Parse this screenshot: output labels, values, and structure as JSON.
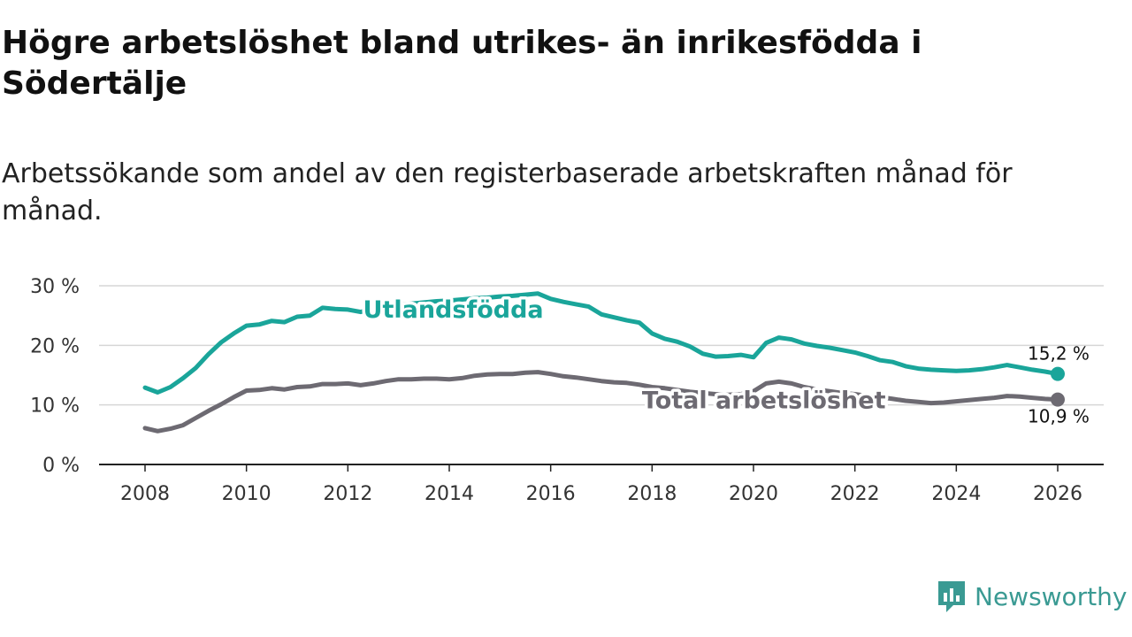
{
  "title": "Högre arbetslöshet bland utrikes- än inrikesfödda i Södertälje",
  "subtitle": "Arbetssökande som andel av den registerbaserade arbetskraften månad för månad.",
  "brand": {
    "name": "Newsworthy",
    "color": "#3a9a93"
  },
  "chart_data": {
    "type": "line",
    "title": "Högre arbetslöshet bland utrikes- än inrikesfödda i Södertälje",
    "subtitle": "Arbetssökande som andel av den registerbaserade arbetskraften månad för månad.",
    "ylim": [
      0,
      30
    ],
    "xlim": [
      2008,
      2026
    ],
    "y_ticks": [
      0,
      10,
      20,
      30
    ],
    "y_tick_labels": [
      "0 %",
      "10 %",
      "20 %",
      "30 %"
    ],
    "x_ticks": [
      2008,
      2010,
      2012,
      2014,
      2016,
      2018,
      2020,
      2022,
      2024,
      2026
    ],
    "x_tick_labels": [
      "2008",
      "2010",
      "2012",
      "2014",
      "2016",
      "2018",
      "2020",
      "2022",
      "2024",
      "2026"
    ],
    "grid": true,
    "series": [
      {
        "name": "Utlandsfödda",
        "color": "#1aa59a",
        "end_label": "15,2 %",
        "points": [
          [
            2008.0,
            12.9
          ],
          [
            2008.25,
            12.1
          ],
          [
            2008.5,
            13.0
          ],
          [
            2008.75,
            14.5
          ],
          [
            2009.0,
            16.2
          ],
          [
            2009.25,
            18.5
          ],
          [
            2009.5,
            20.5
          ],
          [
            2009.75,
            22.0
          ],
          [
            2010.0,
            23.3
          ],
          [
            2010.25,
            23.5
          ],
          [
            2010.5,
            24.1
          ],
          [
            2010.75,
            23.9
          ],
          [
            2011.0,
            24.8
          ],
          [
            2011.25,
            25.0
          ],
          [
            2011.5,
            26.3
          ],
          [
            2011.75,
            26.1
          ],
          [
            2012.0,
            26.0
          ],
          [
            2012.25,
            25.6
          ],
          [
            2012.5,
            26.2
          ],
          [
            2012.75,
            26.5
          ],
          [
            2013.0,
            26.8
          ],
          [
            2013.25,
            27.0
          ],
          [
            2013.5,
            27.2
          ],
          [
            2013.75,
            27.4
          ],
          [
            2014.0,
            27.5
          ],
          [
            2014.25,
            27.7
          ],
          [
            2014.5,
            27.9
          ],
          [
            2014.75,
            28.0
          ],
          [
            2015.0,
            28.2
          ],
          [
            2015.25,
            28.3
          ],
          [
            2015.5,
            28.5
          ],
          [
            2015.75,
            28.7
          ],
          [
            2016.0,
            27.8
          ],
          [
            2016.25,
            27.3
          ],
          [
            2016.5,
            26.9
          ],
          [
            2016.75,
            26.5
          ],
          [
            2017.0,
            25.2
          ],
          [
            2017.25,
            24.7
          ],
          [
            2017.5,
            24.2
          ],
          [
            2017.75,
            23.8
          ],
          [
            2018.0,
            22.0
          ],
          [
            2018.25,
            21.1
          ],
          [
            2018.5,
            20.6
          ],
          [
            2018.75,
            19.8
          ],
          [
            2019.0,
            18.6
          ],
          [
            2019.25,
            18.1
          ],
          [
            2019.5,
            18.2
          ],
          [
            2019.75,
            18.4
          ],
          [
            2020.0,
            18.0
          ],
          [
            2020.25,
            20.4
          ],
          [
            2020.5,
            21.3
          ],
          [
            2020.75,
            21.0
          ],
          [
            2021.0,
            20.3
          ],
          [
            2021.25,
            19.9
          ],
          [
            2021.5,
            19.6
          ],
          [
            2021.75,
            19.2
          ],
          [
            2022.0,
            18.8
          ],
          [
            2022.25,
            18.2
          ],
          [
            2022.5,
            17.5
          ],
          [
            2022.75,
            17.2
          ],
          [
            2023.0,
            16.5
          ],
          [
            2023.25,
            16.1
          ],
          [
            2023.5,
            15.9
          ],
          [
            2023.75,
            15.8
          ],
          [
            2024.0,
            15.7
          ],
          [
            2024.25,
            15.8
          ],
          [
            2024.5,
            16.0
          ],
          [
            2024.75,
            16.3
          ],
          [
            2025.0,
            16.7
          ],
          [
            2025.25,
            16.3
          ],
          [
            2025.5,
            15.9
          ],
          [
            2025.75,
            15.6
          ],
          [
            2026.0,
            15.2
          ]
        ]
      },
      {
        "name": "Total arbetslöshet",
        "color": "#6d6a72",
        "end_label": "10,9 %",
        "points": [
          [
            2008.0,
            6.1
          ],
          [
            2008.25,
            5.6
          ],
          [
            2008.5,
            6.0
          ],
          [
            2008.75,
            6.6
          ],
          [
            2009.0,
            7.8
          ],
          [
            2009.25,
            9.0
          ],
          [
            2009.5,
            10.1
          ],
          [
            2009.75,
            11.3
          ],
          [
            2010.0,
            12.4
          ],
          [
            2010.25,
            12.5
          ],
          [
            2010.5,
            12.8
          ],
          [
            2010.75,
            12.6
          ],
          [
            2011.0,
            13.0
          ],
          [
            2011.25,
            13.1
          ],
          [
            2011.5,
            13.5
          ],
          [
            2011.75,
            13.5
          ],
          [
            2012.0,
            13.6
          ],
          [
            2012.25,
            13.3
          ],
          [
            2012.5,
            13.6
          ],
          [
            2012.75,
            14.0
          ],
          [
            2013.0,
            14.3
          ],
          [
            2013.25,
            14.3
          ],
          [
            2013.5,
            14.4
          ],
          [
            2013.75,
            14.4
          ],
          [
            2014.0,
            14.3
          ],
          [
            2014.25,
            14.5
          ],
          [
            2014.5,
            14.9
          ],
          [
            2014.75,
            15.1
          ],
          [
            2015.0,
            15.2
          ],
          [
            2015.25,
            15.2
          ],
          [
            2015.5,
            15.4
          ],
          [
            2015.75,
            15.5
          ],
          [
            2016.0,
            15.2
          ],
          [
            2016.25,
            14.8
          ],
          [
            2016.5,
            14.6
          ],
          [
            2016.75,
            14.3
          ],
          [
            2017.0,
            14.0
          ],
          [
            2017.25,
            13.8
          ],
          [
            2017.5,
            13.7
          ],
          [
            2017.75,
            13.4
          ],
          [
            2018.0,
            13.0
          ],
          [
            2018.25,
            12.8
          ],
          [
            2018.5,
            12.5
          ],
          [
            2018.75,
            12.2
          ],
          [
            2019.0,
            12.0
          ],
          [
            2019.25,
            11.8
          ],
          [
            2019.5,
            11.7
          ],
          [
            2019.75,
            11.8
          ],
          [
            2020.0,
            12.3
          ],
          [
            2020.25,
            13.6
          ],
          [
            2020.5,
            13.9
          ],
          [
            2020.75,
            13.6
          ],
          [
            2021.0,
            13.0
          ],
          [
            2021.25,
            12.6
          ],
          [
            2021.5,
            12.3
          ],
          [
            2021.75,
            12.0
          ],
          [
            2022.0,
            11.8
          ],
          [
            2022.25,
            11.5
          ],
          [
            2022.5,
            11.3
          ],
          [
            2022.75,
            11.0
          ],
          [
            2023.0,
            10.7
          ],
          [
            2023.25,
            10.5
          ],
          [
            2023.5,
            10.3
          ],
          [
            2023.75,
            10.4
          ],
          [
            2024.0,
            10.6
          ],
          [
            2024.25,
            10.8
          ],
          [
            2024.5,
            11.0
          ],
          [
            2024.75,
            11.2
          ],
          [
            2025.0,
            11.5
          ],
          [
            2025.25,
            11.4
          ],
          [
            2025.5,
            11.2
          ],
          [
            2025.75,
            11.0
          ],
          [
            2026.0,
            10.9
          ]
        ]
      }
    ],
    "annotations": [
      {
        "series": "Utlandsfödda",
        "text": "Utlandsfödda",
        "at": [
          2012.3,
          26.0
        ]
      },
      {
        "series": "Total arbetslöshet",
        "text": "Total arbetslöshet",
        "at": [
          2017.8,
          10.8
        ]
      }
    ]
  }
}
